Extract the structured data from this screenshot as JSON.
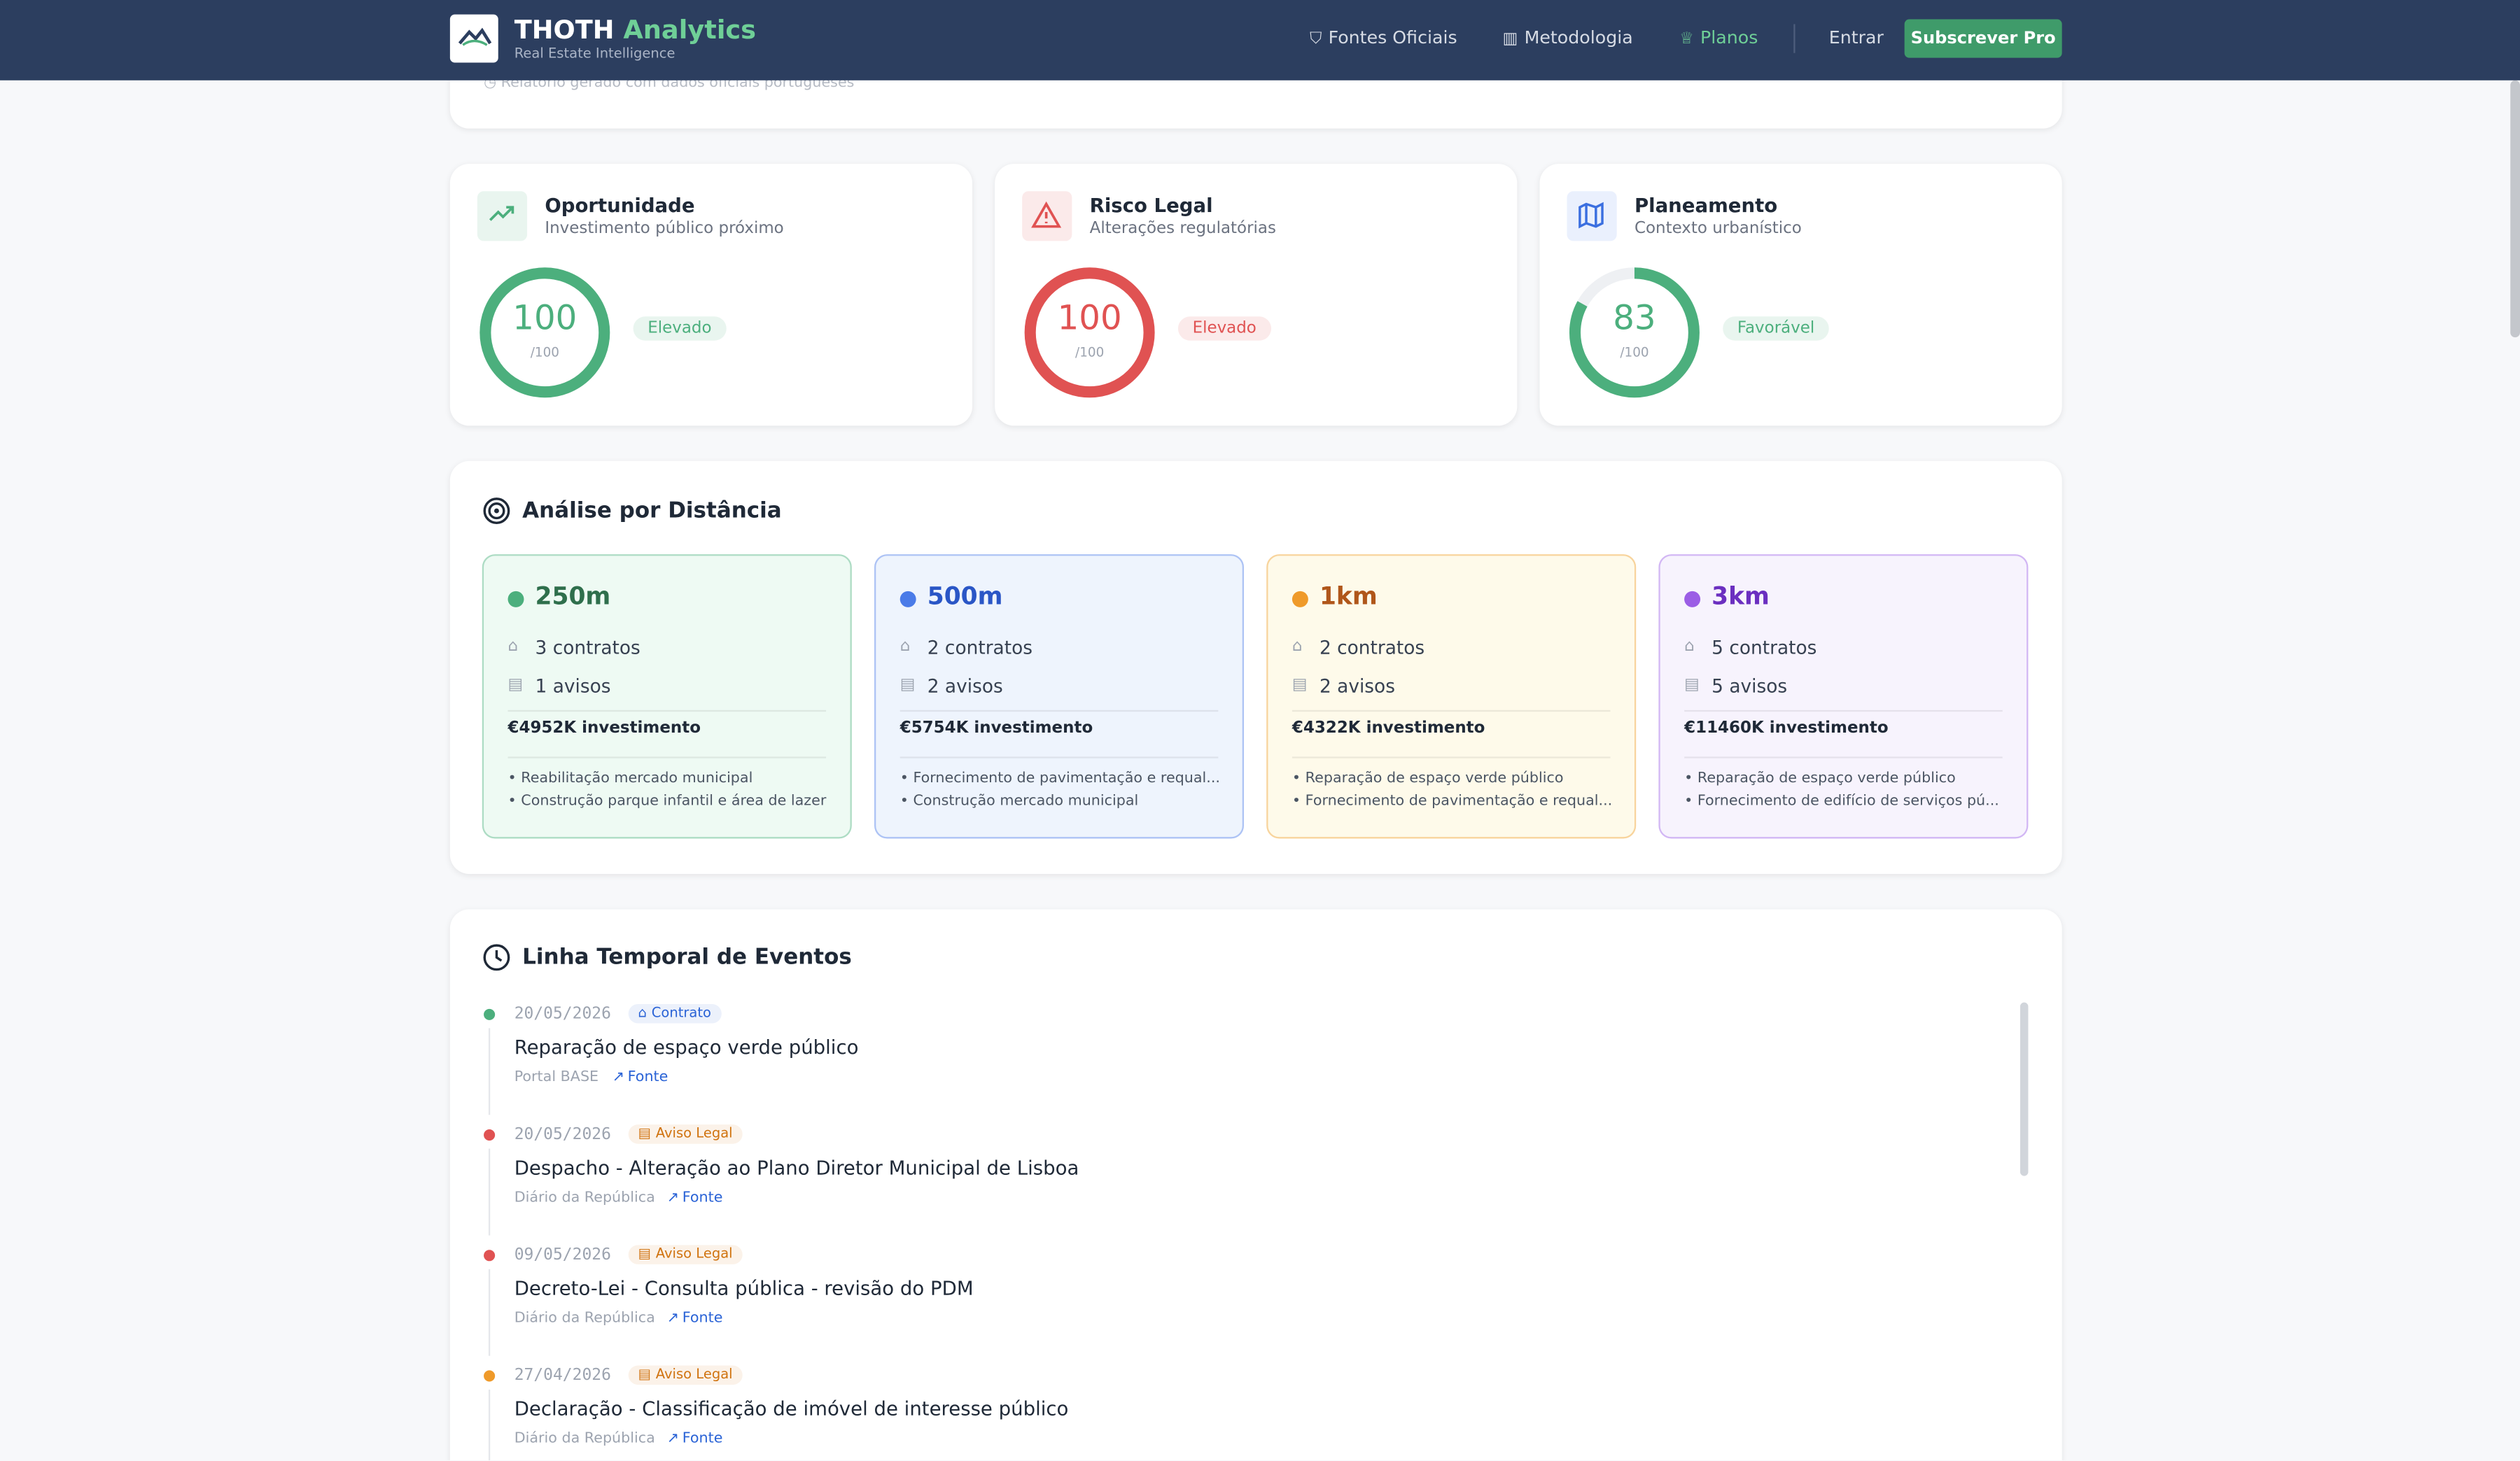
{
  "nav": {
    "brand_main": "THOTH",
    "brand_accent": "Analytics",
    "tagline": "Real Estate Intelligence",
    "links": [
      "Fontes Oficiais",
      "Metodologia",
      "Planos"
    ],
    "login": "Entrar",
    "cta": "Subscrever Pro"
  },
  "report_note": "Relatório gerado com dados oficiais portugueses",
  "scores": [
    {
      "title": "Oportunidade",
      "subtitle": "Investimento público próximo",
      "score": 100,
      "out_of": {
        "value": 100,
        "label": "/100"
      },
      "rating": "Elevado",
      "color": "#4caf7d"
    },
    {
      "title": "Risco Legal",
      "subtitle": "Alterações regulatórias",
      "score": 100,
      "out_of": {
        "value": 100,
        "label": "/100"
      },
      "rating": "Elevado",
      "color": "#e05252"
    },
    {
      "title": "Planeamento",
      "subtitle": "Contexto urbanístico",
      "score": 83,
      "out_of": {
        "value": 100,
        "label": "/100"
      },
      "rating": "Favorável",
      "color": "#4caf7d"
    }
  ],
  "distance": {
    "title": "Análise por Distância",
    "zones": [
      {
        "radius": "250m",
        "contracts": "3 contratos",
        "notices": "1 avisos",
        "investment": "€4952K investimento",
        "items": [
          "Reabilitação mercado municipal",
          "Construção parque infantil e área de lazer"
        ],
        "color": "#4caf7d",
        "accent": "#2f6f4c",
        "bg": "#eefaf3"
      },
      {
        "radius": "500m",
        "contracts": "2 contratos",
        "notices": "2 avisos",
        "investment": "€5754K investimento",
        "items": [
          "Fornecimento de pavimentação e requal...",
          "Construção mercado municipal"
        ],
        "color": "#4a7be8",
        "accent": "#2a56c6",
        "bg": "#eef4fd"
      },
      {
        "radius": "1km",
        "contracts": "2 contratos",
        "notices": "2 avisos",
        "investment": "€4322K investimento",
        "items": [
          "Reparação de espaço verde público",
          "Fornecimento de pavimentação e requal..."
        ],
        "color": "#ef9a2a",
        "accent": "#b0561a",
        "bg": "#fefaea"
      },
      {
        "radius": "3km",
        "contracts": "5 contratos",
        "notices": "5 avisos",
        "investment": "€11460K investimento",
        "items": [
          "Reparação de espaço verde público",
          "Fornecimento de edifício de serviços pú..."
        ],
        "color": "#9b5de5",
        "accent": "#6b2fc0",
        "bg": "#f7f3fd"
      }
    ]
  },
  "timeline": {
    "title": "Linha Temporal de Eventos",
    "events": [
      {
        "date": "20/05/2026",
        "tag": "Contrato",
        "title": "Reparação de espaço verde público",
        "source": "Portal BASE",
        "link": "Fonte",
        "color": "#4caf7d",
        "tag_color": "#2a63d6"
      },
      {
        "date": "20/05/2026",
        "tag": "Aviso Legal",
        "title": "Despacho - Alteração ao Plano Diretor Municipal de Lisboa",
        "source": "Diário da República",
        "link": "Fonte",
        "color": "#e05252",
        "tag_color": "#d0730f"
      },
      {
        "date": "09/05/2026",
        "tag": "Aviso Legal",
        "title": "Decreto-Lei - Consulta pública - revisão do PDM",
        "source": "Diário da República",
        "link": "Fonte",
        "color": "#e05252",
        "tag_color": "#d0730f"
      },
      {
        "date": "27/04/2026",
        "tag": "Aviso Legal",
        "title": "Declaração - Classificação de imóvel de interesse público",
        "source": "Diário da República",
        "link": "Fonte",
        "color": "#ef9a2a",
        "tag_color": "#d0730f"
      }
    ]
  }
}
